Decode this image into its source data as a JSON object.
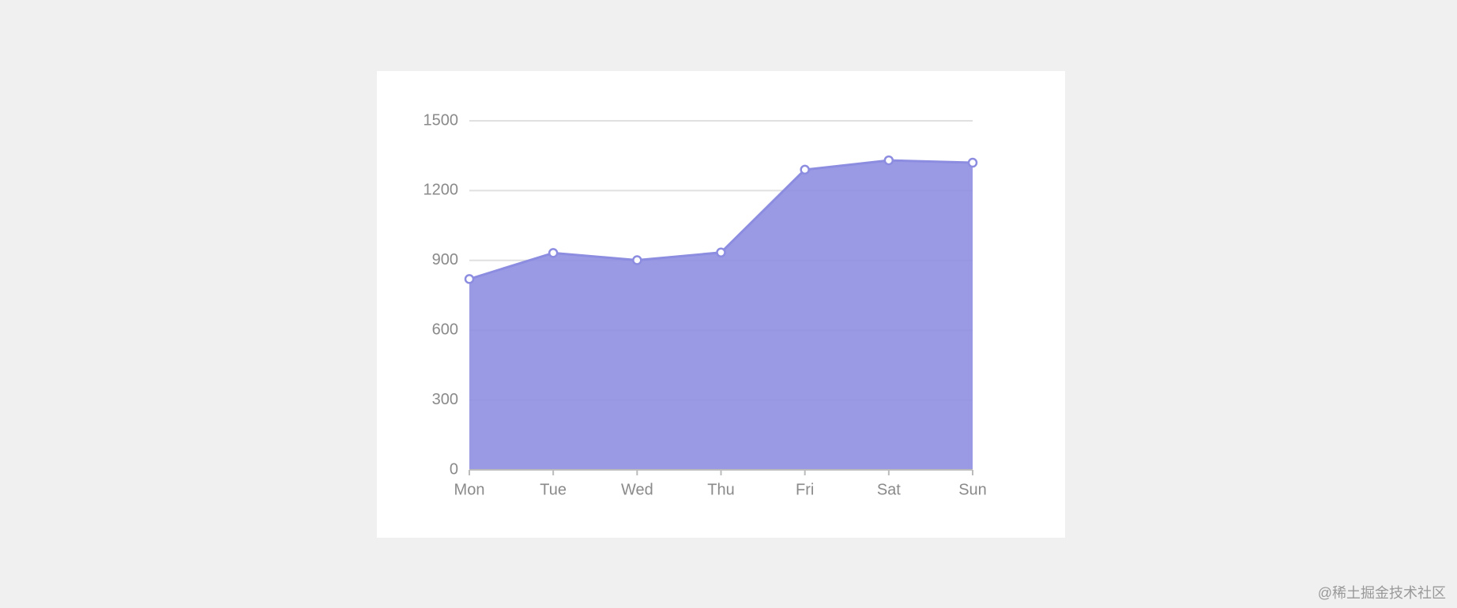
{
  "chart_data": {
    "type": "area",
    "categories": [
      "Mon",
      "Tue",
      "Wed",
      "Thu",
      "Fri",
      "Sat",
      "Sun"
    ],
    "values": [
      820,
      932,
      901,
      934,
      1290,
      1330,
      1320
    ],
    "color": "#8c8ce0",
    "ylim": [
      0,
      1500
    ],
    "yticks": [
      0,
      300,
      600,
      900,
      1200,
      1500
    ],
    "grid": true
  },
  "watermark": "@稀土掘金技术社区"
}
